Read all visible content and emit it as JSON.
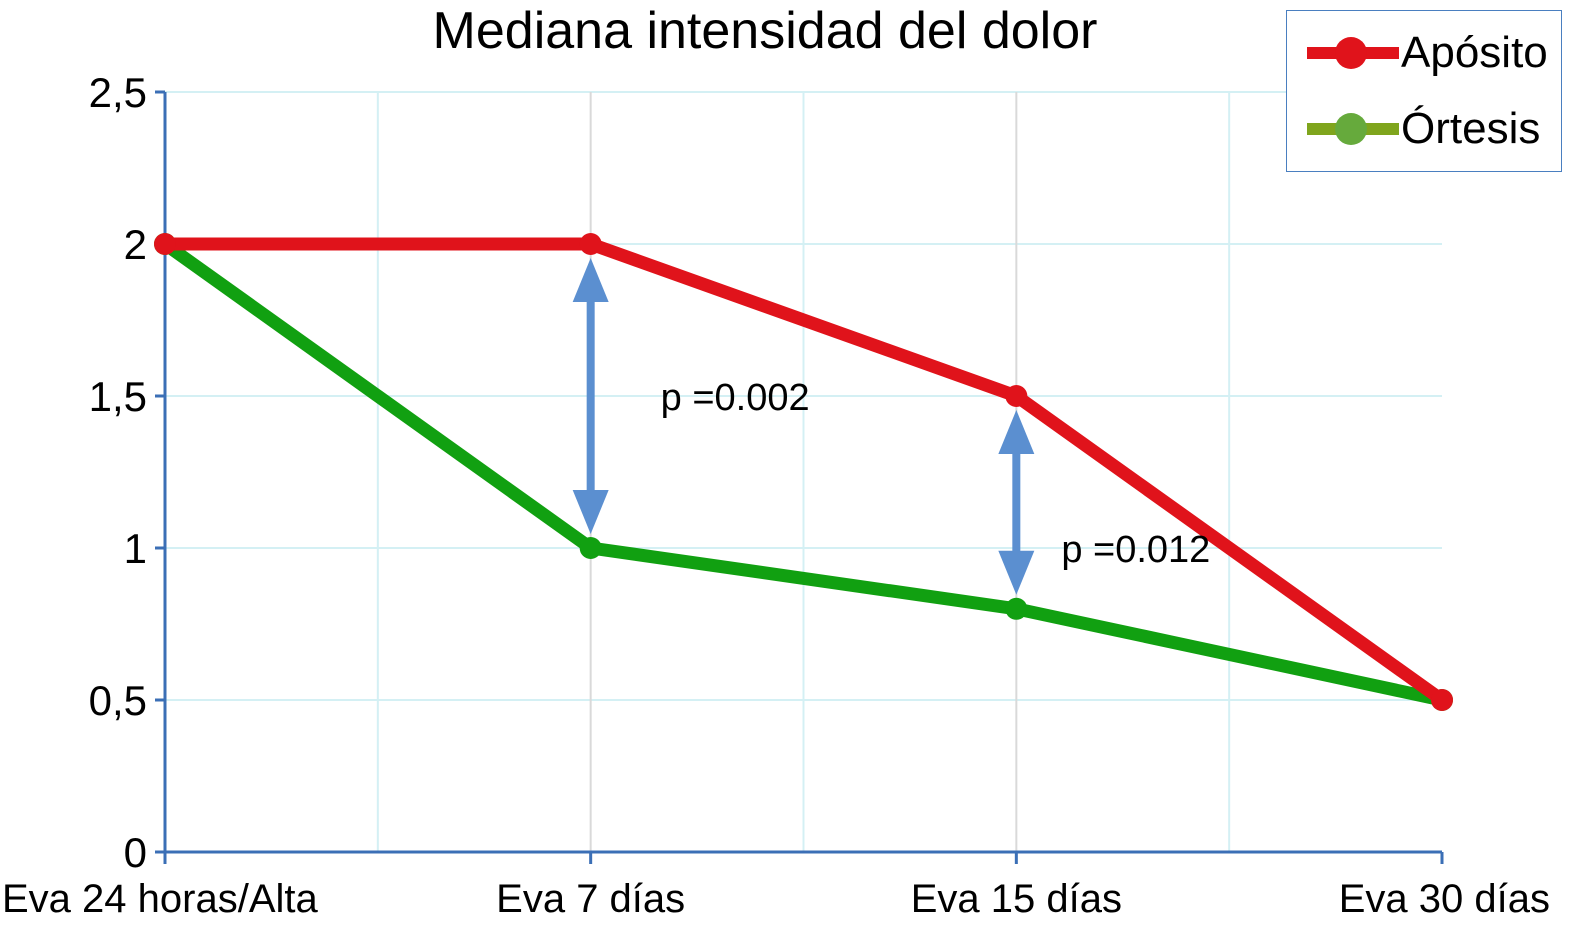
{
  "chart_data": {
    "type": "line",
    "title": "Mediana intensidad del dolor",
    "categories": [
      "Eva 24 horas/Alta",
      "Eva 7 días",
      "Eva 15 días",
      "Eva 30 días"
    ],
    "series": [
      {
        "name": "Apósito",
        "values": [
          2,
          2,
          1.5,
          0.5
        ],
        "color": "#e0131b"
      },
      {
        "name": "Órtesis",
        "values": [
          2,
          1,
          0.8,
          0.5
        ],
        "color": "#11a011"
      }
    ],
    "ylim": [
      0,
      2.5
    ],
    "yticks": [
      0,
      0.5,
      1,
      1.5,
      2,
      2.5
    ],
    "ytick_labels": [
      "0",
      "0,5",
      "1",
      "1,5",
      "2",
      "2,5"
    ],
    "grid": true,
    "legend_position": "top-right",
    "annotations": [
      {
        "text": "p =0.002",
        "category": "Eva 7 días",
        "y_from": 1,
        "y_to": 2
      },
      {
        "text": "p =0.012",
        "category": "Eva 15 días",
        "y_from": 0.8,
        "y_to": 1.5
      }
    ],
    "colors": {
      "axis": "#3b6fb6",
      "grid": "#d4f0f4",
      "arrow": "#5b8fd0"
    }
  }
}
